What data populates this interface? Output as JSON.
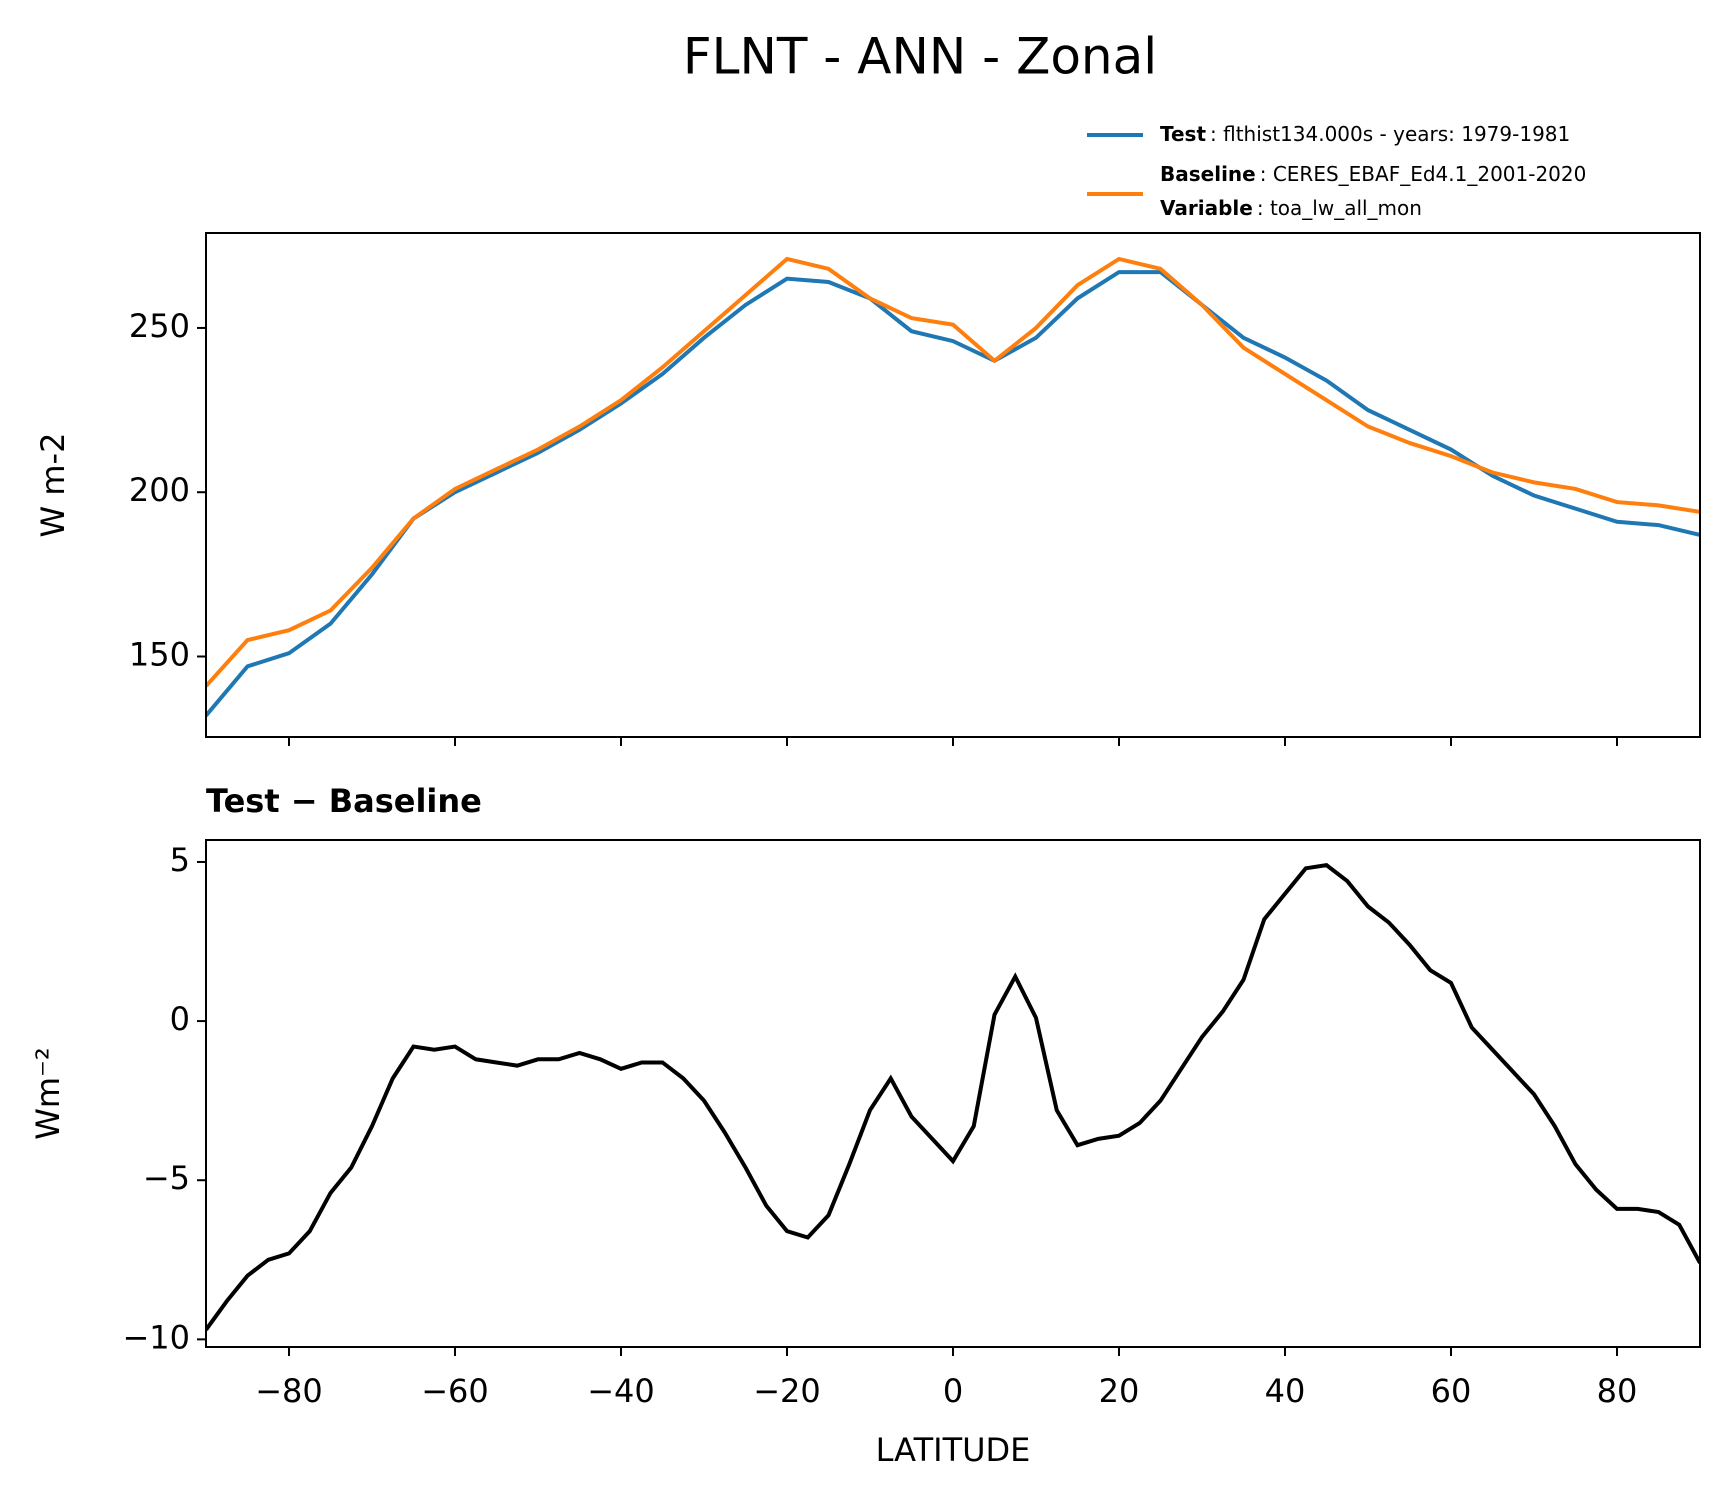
{
  "title": "FLNT - ANN - Zonal",
  "chart_data": [
    {
      "type": "line",
      "ylabel": "W m-2",
      "x": [
        -90,
        -85,
        -80,
        -75,
        -70,
        -65,
        -60,
        -55,
        -50,
        -45,
        -40,
        -35,
        -30,
        -25,
        -20,
        -15,
        -10,
        -5,
        0,
        5,
        10,
        15,
        20,
        25,
        30,
        35,
        40,
        45,
        50,
        55,
        60,
        65,
        70,
        75,
        80,
        85,
        90
      ],
      "series": [
        {
          "name": "Test",
          "label": ": flthist134.000s - years: 1979-1981",
          "color": "#1f77b4",
          "values": [
            132,
            147,
            151,
            160,
            175,
            192,
            200,
            206,
            212,
            219,
            227,
            236,
            247,
            257,
            265,
            264,
            259,
            249,
            246,
            240,
            247,
            259,
            267,
            267,
            257,
            247,
            241,
            234,
            225,
            219,
            213,
            205,
            199,
            195,
            191,
            190,
            187
          ]
        },
        {
          "name": "Baseline",
          "label": ": CERES_EBAF_Ed4.1_2001-2020",
          "color": "#ff7f0e",
          "values": [
            141,
            155,
            158,
            164,
            177,
            192,
            201,
            207,
            213,
            220,
            228,
            238,
            249,
            260,
            271,
            268,
            259,
            253,
            251,
            240,
            250,
            263,
            271,
            268,
            257,
            244,
            236,
            228,
            220,
            215,
            211,
            206,
            203,
            201,
            197,
            196,
            194
          ]
        }
      ],
      "legend_note": {
        "name": "Variable",
        "label": ": toa_lw_all_mon"
      },
      "xlim": [
        -90,
        90
      ],
      "xticks": [
        -80,
        -60,
        -40,
        -20,
        0,
        20,
        40,
        60,
        80
      ],
      "xtick_labels": false,
      "ylim": [
        125.5,
        278.9
      ],
      "yticks": [
        150,
        200,
        250
      ]
    },
    {
      "type": "line",
      "title": "Test − Baseline",
      "xlabel": "LATITUDE",
      "ylabel": "Wm⁻²",
      "x": [
        -90,
        -87.5,
        -85,
        -82.5,
        -80,
        -77.5,
        -75,
        -72.5,
        -70,
        -67.5,
        -65,
        -62.5,
        -60,
        -57.5,
        -55,
        -52.5,
        -50,
        -47.5,
        -45,
        -42.5,
        -40,
        -37.5,
        -35,
        -32.5,
        -30,
        -27.5,
        -25,
        -22.5,
        -20,
        -17.5,
        -15,
        -12.5,
        -10,
        -7.5,
        -5,
        -2.5,
        0,
        2.5,
        5,
        7.5,
        10,
        12.5,
        15,
        17.5,
        20,
        22.5,
        25,
        27.5,
        30,
        32.5,
        35,
        37.5,
        40,
        42.5,
        45,
        47.5,
        50,
        52.5,
        55,
        57.5,
        60,
        62.5,
        65,
        67.5,
        70,
        72.5,
        75,
        77.5,
        80,
        82.5,
        85,
        87.5,
        90
      ],
      "series": [
        {
          "color": "#000000",
          "values": [
            -9.7,
            -8.8,
            -8.0,
            -7.5,
            -7.3,
            -6.6,
            -5.4,
            -4.6,
            -3.3,
            -1.8,
            -0.8,
            -0.9,
            -0.8,
            -1.2,
            -1.3,
            -1.4,
            -1.2,
            -1.2,
            -1.0,
            -1.2,
            -1.5,
            -1.3,
            -1.3,
            -1.8,
            -2.5,
            -3.5,
            -4.6,
            -5.8,
            -6.6,
            -6.8,
            -6.1,
            -4.5,
            -2.8,
            -1.8,
            -3.0,
            -3.7,
            -4.4,
            -3.3,
            0.2,
            1.4,
            0.1,
            -2.8,
            -3.9,
            -3.7,
            -3.6,
            -3.2,
            -2.5,
            -1.5,
            -0.5,
            0.3,
            1.3,
            3.2,
            4.0,
            4.8,
            4.9,
            4.4,
            3.6,
            3.1,
            2.4,
            1.6,
            1.2,
            -0.2,
            -0.9,
            -1.6,
            -2.3,
            -3.3,
            -4.5,
            -5.3,
            -5.9,
            -5.9,
            -6.0,
            -6.4,
            -7.6
          ]
        }
      ],
      "xlim": [
        -90,
        90
      ],
      "xticks": [
        {
          "value": -80,
          "label": "−80"
        },
        {
          "value": -60,
          "label": "−60"
        },
        {
          "value": -40,
          "label": "−40"
        },
        {
          "value": -20,
          "label": "−20"
        },
        0,
        20,
        40,
        60,
        80
      ],
      "xtick_labels": true,
      "ylim": [
        -10.24,
        5.69
      ],
      "yticks": [
        5,
        0,
        {
          "value": -5,
          "label": "−5"
        },
        {
          "value": -10,
          "label": "−10"
        }
      ]
    }
  ]
}
